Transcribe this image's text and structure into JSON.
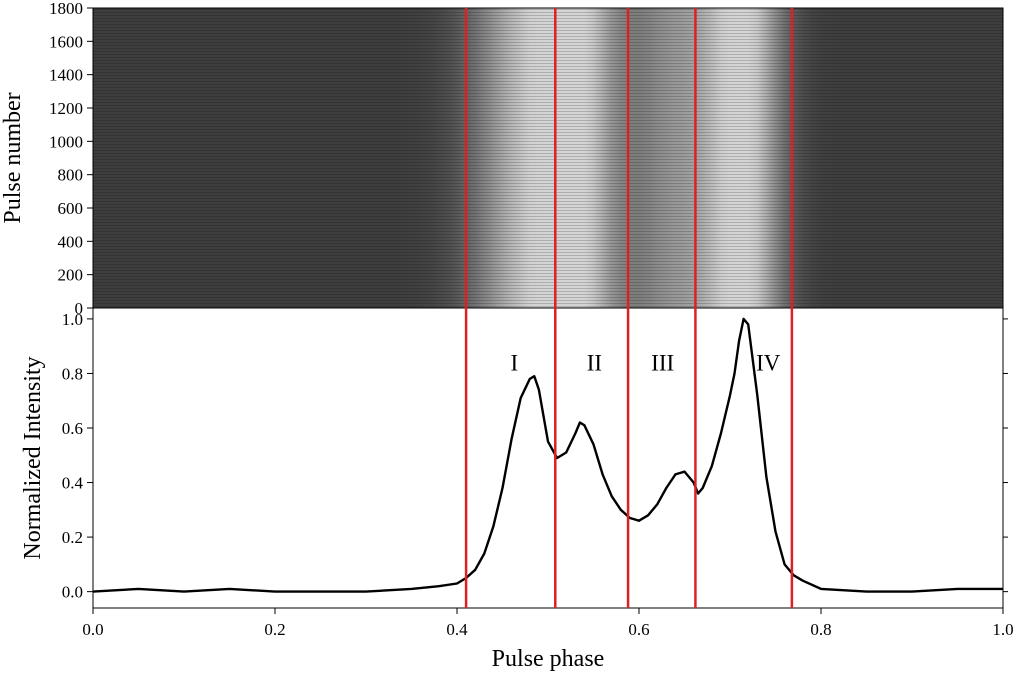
{
  "chart_data": [
    {
      "type": "heatmap",
      "ylabel": "Pulse number",
      "xlabel": "",
      "xlim": [
        0.0,
        1.0
      ],
      "ylim": [
        0,
        1800
      ],
      "yticks": [
        0,
        200,
        400,
        600,
        800,
        1000,
        1200,
        1400,
        1600,
        1800
      ],
      "colormap": "gray",
      "bright_phase_bands": [
        {
          "center": 0.48,
          "width": 0.045,
          "level": 0.85
        },
        {
          "center": 0.535,
          "width": 0.03,
          "level": 0.7
        },
        {
          "center": 0.64,
          "width": 0.04,
          "level": 0.55
        },
        {
          "center": 0.715,
          "width": 0.03,
          "level": 1.0
        }
      ],
      "grid": false
    },
    {
      "type": "line",
      "xlabel": "Pulse phase",
      "ylabel": "Normalized Intensity",
      "xlim": [
        0.0,
        1.0
      ],
      "ylim": [
        -0.06,
        1.04
      ],
      "xticks": [
        "0.0",
        "0.2",
        "0.4",
        "0.6",
        "0.8",
        "1.0"
      ],
      "yticks": [
        "0.0",
        "0.2",
        "0.4",
        "0.6",
        "0.8",
        "1.0"
      ],
      "series": [
        {
          "x": [
            0.0,
            0.05,
            0.1,
            0.15,
            0.2,
            0.25,
            0.3,
            0.35,
            0.38,
            0.4,
            0.41,
            0.42,
            0.43,
            0.44,
            0.45,
            0.46,
            0.47,
            0.48,
            0.485,
            0.49,
            0.5,
            0.51,
            0.52,
            0.53,
            0.535,
            0.54,
            0.55,
            0.56,
            0.57,
            0.58,
            0.59,
            0.6,
            0.61,
            0.62,
            0.63,
            0.64,
            0.65,
            0.66,
            0.665,
            0.67,
            0.68,
            0.69,
            0.7,
            0.705,
            0.71,
            0.715,
            0.72,
            0.73,
            0.74,
            0.75,
            0.76,
            0.77,
            0.78,
            0.8,
            0.85,
            0.9,
            0.95,
            1.0
          ],
          "y": [
            0.0,
            0.01,
            0.0,
            0.01,
            0.0,
            0.0,
            0.0,
            0.01,
            0.02,
            0.03,
            0.05,
            0.08,
            0.14,
            0.24,
            0.38,
            0.56,
            0.71,
            0.78,
            0.79,
            0.74,
            0.55,
            0.49,
            0.51,
            0.58,
            0.62,
            0.61,
            0.54,
            0.43,
            0.35,
            0.3,
            0.27,
            0.26,
            0.28,
            0.32,
            0.38,
            0.43,
            0.44,
            0.4,
            0.36,
            0.38,
            0.46,
            0.58,
            0.72,
            0.8,
            0.92,
            1.0,
            0.98,
            0.72,
            0.42,
            0.22,
            0.1,
            0.06,
            0.04,
            0.01,
            0.0,
            0.0,
            0.01,
            0.01
          ]
        }
      ],
      "vertical_lines": [
        0.41,
        0.508,
        0.588,
        0.662,
        0.768
      ],
      "vertical_line_color": "#e02020",
      "region_labels": [
        {
          "text": "I",
          "x": 0.463,
          "y": 0.84
        },
        {
          "text": "II",
          "x": 0.551,
          "y": 0.84
        },
        {
          "text": "III",
          "x": 0.626,
          "y": 0.84
        },
        {
          "text": "IV",
          "x": 0.742,
          "y": 0.84
        }
      ],
      "grid": false
    }
  ]
}
